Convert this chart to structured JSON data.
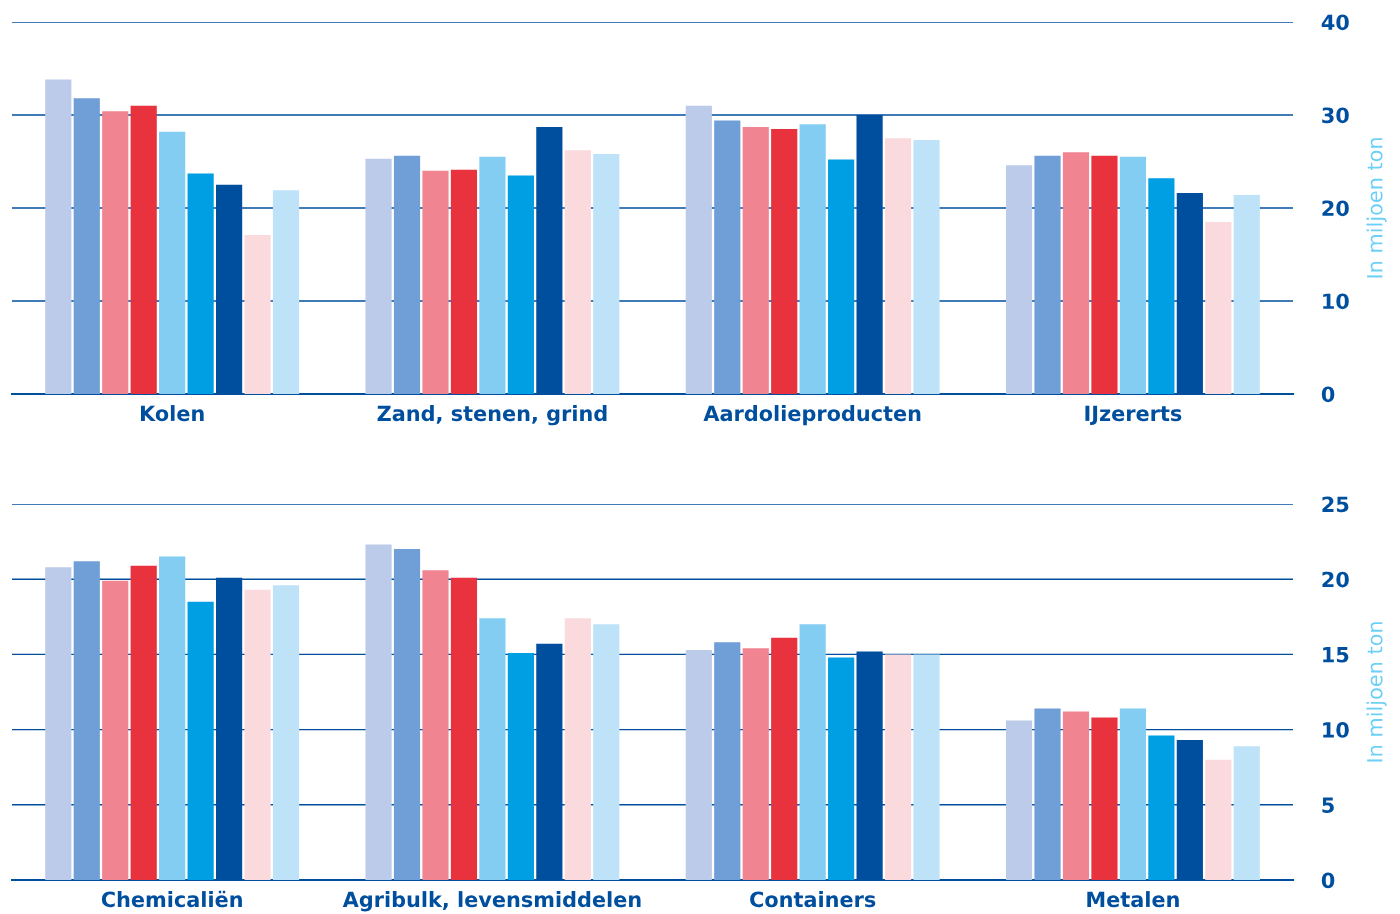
{
  "chart_data": [
    {
      "type": "bar",
      "categories": [
        "Kolen",
        "Zand, stenen, grind",
        "Aardolieproducten",
        "IJzererts"
      ],
      "ylabel": "In miljoen ton",
      "ylim": [
        0,
        40
      ],
      "yticks": [
        0,
        10,
        20,
        30,
        40
      ],
      "grid": "y",
      "legend": false,
      "series": [
        {
          "color": "#bccbea",
          "values": [
            33.8,
            25.3,
            31.0,
            24.6
          ]
        },
        {
          "color": "#6f9fd6",
          "values": [
            31.8,
            25.6,
            29.4,
            25.6
          ]
        },
        {
          "color": "#f08490",
          "values": [
            30.4,
            24.0,
            28.7,
            26.0
          ]
        },
        {
          "color": "#e8333f",
          "values": [
            31.0,
            24.1,
            28.5,
            25.6
          ]
        },
        {
          "color": "#83cdf2",
          "values": [
            28.2,
            25.5,
            29.0,
            25.5
          ]
        },
        {
          "color": "#009fe3",
          "values": [
            23.7,
            23.5,
            25.2,
            23.2
          ]
        },
        {
          "color": "#004f9f",
          "values": [
            22.5,
            28.7,
            30.0,
            21.6
          ]
        },
        {
          "color": "#fadadd",
          "values": [
            17.1,
            26.2,
            27.5,
            18.5
          ]
        },
        {
          "color": "#bee3f8",
          "values": [
            21.9,
            25.8,
            27.3,
            21.4
          ]
        }
      ]
    },
    {
      "type": "bar",
      "categories": [
        "Chemicaliën",
        "Agribulk, levensmiddelen",
        "Containers",
        "Metalen"
      ],
      "ylabel": "In miljoen ton",
      "ylim": [
        0,
        25
      ],
      "yticks": [
        0,
        5,
        10,
        15,
        20,
        25
      ],
      "grid": "y",
      "legend": false,
      "series": [
        {
          "color": "#bccbea",
          "values": [
            20.8,
            22.3,
            15.3,
            10.6
          ]
        },
        {
          "color": "#6f9fd6",
          "values": [
            21.2,
            22.0,
            15.8,
            11.4
          ]
        },
        {
          "color": "#f08490",
          "values": [
            19.9,
            20.6,
            15.4,
            11.2
          ]
        },
        {
          "color": "#e8333f",
          "values": [
            20.9,
            20.1,
            16.1,
            10.8
          ]
        },
        {
          "color": "#83cdf2",
          "values": [
            21.5,
            17.4,
            17.0,
            11.4
          ]
        },
        {
          "color": "#009fe3",
          "values": [
            18.5,
            15.1,
            14.8,
            9.6
          ]
        },
        {
          "color": "#004f9f",
          "values": [
            20.1,
            15.7,
            15.2,
            9.3
          ]
        },
        {
          "color": "#fadadd",
          "values": [
            19.3,
            17.4,
            15.0,
            8.0
          ]
        },
        {
          "color": "#bee3f8",
          "values": [
            19.6,
            17.0,
            15.0,
            8.9
          ]
        }
      ]
    }
  ]
}
